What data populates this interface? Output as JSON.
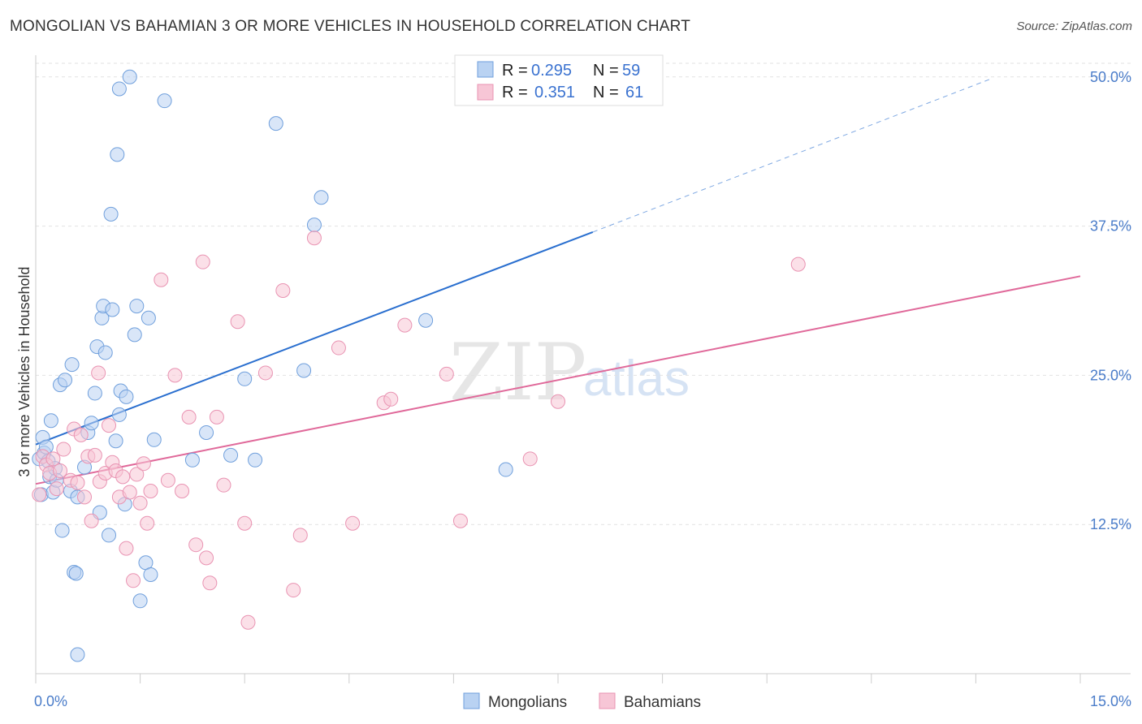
{
  "title": "MONGOLIAN VS BAHAMIAN 3 OR MORE VEHICLES IN HOUSEHOLD CORRELATION CHART",
  "source": "Source: ZipAtlas.com",
  "watermark": {
    "zip": "ZIP",
    "atlas": "atlas"
  },
  "colors": {
    "mongolian_fill": "#b9d2f2",
    "mongolian_stroke": "#6f9fdc",
    "mongolian_line": "#2a6fcf",
    "bahamian_fill": "#f7c6d6",
    "bahamian_stroke": "#e993b2",
    "bahamian_line": "#e0699a",
    "tick_label": "#4a7cc9",
    "grid": "#e2e2e2"
  },
  "legend": {
    "rows": [
      {
        "r_label": "R =",
        "r_value": "0.295",
        "n_label": "N =",
        "n_value": "59"
      },
      {
        "r_label": "R =",
        "r_value": "0.351",
        "n_label": "N =",
        "n_value": "61"
      }
    ]
  },
  "chart_data": {
    "type": "scatter",
    "title": "MONGOLIAN VS BAHAMIAN 3 OR MORE VEHICLES IN HOUSEHOLD CORRELATION CHART",
    "xlabel": "",
    "ylabel": "3 or more Vehicles in Household",
    "xlim": [
      0,
      15
    ],
    "ylim": [
      0,
      52.5
    ],
    "x_tick_labels": [
      {
        "value": 0,
        "label": "0.0%"
      },
      {
        "value": 15,
        "label": "15.0%"
      }
    ],
    "y_tick_labels": [
      {
        "value": 12.5,
        "label": "12.5%"
      },
      {
        "value": 25,
        "label": "25.0%"
      },
      {
        "value": 37.5,
        "label": "37.5%"
      },
      {
        "value": 50,
        "label": "50.0%"
      }
    ],
    "grid": true,
    "legend_position": "top-center",
    "series": [
      {
        "name": "Mongolians",
        "r": 0.295,
        "n": 59,
        "trend": {
          "x0": 0,
          "y0": 19.2,
          "x1": 8.0,
          "y1": 37.0,
          "dash_to_x": 13.7,
          "dash_to_y": 49.8
        },
        "points": [
          [
            0.05,
            18.0
          ],
          [
            0.08,
            15.0
          ],
          [
            0.1,
            19.8
          ],
          [
            0.12,
            18.5
          ],
          [
            0.15,
            19.0
          ],
          [
            0.18,
            17.8
          ],
          [
            0.2,
            16.5
          ],
          [
            0.22,
            21.2
          ],
          [
            0.25,
            15.2
          ],
          [
            0.28,
            17.2
          ],
          [
            0.3,
            16.2
          ],
          [
            0.35,
            24.2
          ],
          [
            0.38,
            12.0
          ],
          [
            0.42,
            24.6
          ],
          [
            0.5,
            15.3
          ],
          [
            0.52,
            25.9
          ],
          [
            0.55,
            8.5
          ],
          [
            0.58,
            8.4
          ],
          [
            0.6,
            14.8
          ],
          [
            0.6,
            1.6
          ],
          [
            0.7,
            17.3
          ],
          [
            0.75,
            20.2
          ],
          [
            0.8,
            21.0
          ],
          [
            0.85,
            23.5
          ],
          [
            0.88,
            27.4
          ],
          [
            0.92,
            13.5
          ],
          [
            0.95,
            29.8
          ],
          [
            0.97,
            30.8
          ],
          [
            1.0,
            26.9
          ],
          [
            1.05,
            11.6
          ],
          [
            1.08,
            38.5
          ],
          [
            1.1,
            30.5
          ],
          [
            1.15,
            19.5
          ],
          [
            1.17,
            43.5
          ],
          [
            1.2,
            21.7
          ],
          [
            1.22,
            23.7
          ],
          [
            1.28,
            14.2
          ],
          [
            1.3,
            23.2
          ],
          [
            1.35,
            50.0
          ],
          [
            1.42,
            28.4
          ],
          [
            1.45,
            30.8
          ],
          [
            1.5,
            6.1
          ],
          [
            1.58,
            9.3
          ],
          [
            1.62,
            29.8
          ],
          [
            1.65,
            8.3
          ],
          [
            1.7,
            19.6
          ],
          [
            1.85,
            48.0
          ],
          [
            2.25,
            17.9
          ],
          [
            2.45,
            20.2
          ],
          [
            2.8,
            18.3
          ],
          [
            3.0,
            24.7
          ],
          [
            3.15,
            17.9
          ],
          [
            3.45,
            46.1
          ],
          [
            3.85,
            25.4
          ],
          [
            4.0,
            37.6
          ],
          [
            4.1,
            39.9
          ],
          [
            5.6,
            29.6
          ],
          [
            6.75,
            17.1
          ],
          [
            1.2,
            49.0
          ]
        ]
      },
      {
        "name": "Bahamians",
        "r": 0.351,
        "n": 61,
        "trend": {
          "x0": 0,
          "y0": 15.9,
          "x1": 15.0,
          "y1": 33.3
        },
        "points": [
          [
            0.05,
            15.0
          ],
          [
            0.1,
            18.2
          ],
          [
            0.15,
            17.5
          ],
          [
            0.2,
            16.8
          ],
          [
            0.25,
            18.0
          ],
          [
            0.3,
            15.5
          ],
          [
            0.35,
            17.0
          ],
          [
            0.4,
            18.8
          ],
          [
            0.5,
            16.2
          ],
          [
            0.55,
            20.5
          ],
          [
            0.6,
            16.0
          ],
          [
            0.65,
            20.0
          ],
          [
            0.7,
            14.8
          ],
          [
            0.75,
            18.2
          ],
          [
            0.8,
            12.8
          ],
          [
            0.85,
            18.3
          ],
          [
            0.9,
            25.2
          ],
          [
            0.92,
            16.1
          ],
          [
            1.0,
            16.8
          ],
          [
            1.05,
            20.8
          ],
          [
            1.1,
            17.7
          ],
          [
            1.15,
            17.0
          ],
          [
            1.2,
            14.8
          ],
          [
            1.25,
            16.5
          ],
          [
            1.3,
            10.5
          ],
          [
            1.35,
            15.2
          ],
          [
            1.4,
            7.8
          ],
          [
            1.45,
            16.7
          ],
          [
            1.5,
            14.3
          ],
          [
            1.55,
            17.6
          ],
          [
            1.6,
            12.6
          ],
          [
            1.65,
            15.3
          ],
          [
            1.8,
            33.0
          ],
          [
            1.9,
            16.2
          ],
          [
            2.0,
            25.0
          ],
          [
            2.1,
            15.3
          ],
          [
            2.2,
            21.5
          ],
          [
            2.3,
            10.8
          ],
          [
            2.4,
            34.5
          ],
          [
            2.45,
            9.7
          ],
          [
            2.5,
            7.6
          ],
          [
            2.6,
            21.5
          ],
          [
            2.7,
            15.8
          ],
          [
            2.9,
            29.5
          ],
          [
            3.0,
            12.6
          ],
          [
            3.05,
            4.3
          ],
          [
            3.3,
            25.2
          ],
          [
            3.55,
            32.1
          ],
          [
            3.7,
            7.0
          ],
          [
            3.8,
            11.6
          ],
          [
            4.0,
            36.5
          ],
          [
            4.35,
            27.3
          ],
          [
            4.55,
            12.6
          ],
          [
            5.0,
            22.7
          ],
          [
            5.1,
            23.0
          ],
          [
            5.3,
            29.2
          ],
          [
            5.9,
            25.1
          ],
          [
            6.1,
            12.8
          ],
          [
            7.1,
            18.0
          ],
          [
            7.5,
            22.8
          ],
          [
            10.95,
            34.3
          ]
        ]
      }
    ]
  }
}
